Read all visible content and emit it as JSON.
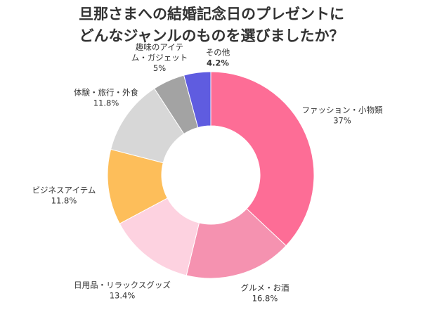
{
  "chart_data": {
    "type": "pie",
    "variant": "donut",
    "title_lines": [
      "旦那さまへの結婚記念日のプレゼントに",
      "どんなジャンルのものを選びましたか？"
    ],
    "unit": "%",
    "start": "12 o'clock",
    "direction": "clockwise",
    "slices": [
      {
        "label_lines": [
          "ファッション・小物類"
        ],
        "value": 37,
        "value_text": "37%",
        "color": "#fd6d96"
      },
      {
        "label_lines": [
          "グルメ・お酒"
        ],
        "value": 16.8,
        "value_text": "16.8%",
        "color": "#f592b0"
      },
      {
        "label_lines": [
          "日用品・リラックスグッズ"
        ],
        "value": 13.4,
        "value_text": "13.4%",
        "color": "#fdd2e0"
      },
      {
        "label_lines": [
          "ビジネスアイテム"
        ],
        "value": 11.8,
        "value_text": "11.8%",
        "color": "#fdbe5a"
      },
      {
        "label_lines": [
          "体験・旅行・外食"
        ],
        "value": 11.8,
        "value_text": "11.8%",
        "color": "#d7d7d7"
      },
      {
        "label_lines": [
          "趣味のアイテ",
          "ム・ガジェット"
        ],
        "value": 5,
        "value_text": "5%",
        "color": "#a3a3a3"
      },
      {
        "label_lines": [
          "その他"
        ],
        "value": 4.2,
        "value_text": "4.2%",
        "color": "#5f5ce0",
        "value_bold": true
      }
    ]
  }
}
